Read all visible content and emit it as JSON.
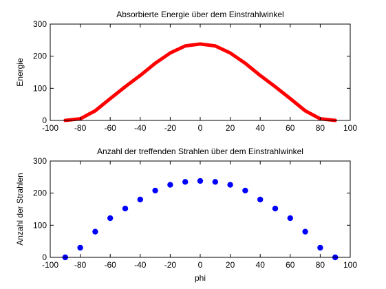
{
  "chart_data": [
    {
      "type": "line",
      "title": "Absorbierte Energie über dem Einstrahlwinkel",
      "xlabel": "",
      "ylabel": "Energie",
      "xlim": [
        -100,
        100
      ],
      "ylim": [
        0,
        300
      ],
      "xticks": [
        "-100",
        "-80",
        "-60",
        "-40",
        "-20",
        "0",
        "20",
        "40",
        "60",
        "80",
        "100"
      ],
      "yticks": [
        "0",
        "100",
        "200",
        "300"
      ],
      "grid": false,
      "color": "#ff0000",
      "x": [
        -90,
        -80,
        -70,
        -60,
        -50,
        -40,
        -30,
        -20,
        -10,
        0,
        10,
        20,
        30,
        40,
        50,
        60,
        70,
        80,
        90
      ],
      "y": [
        0,
        5,
        30,
        68,
        105,
        140,
        178,
        210,
        232,
        238,
        232,
        210,
        178,
        140,
        105,
        68,
        30,
        5,
        0
      ]
    },
    {
      "type": "scatter",
      "title": "Anzahl der treffenden Strahlen über dem Einstrahlwinkel",
      "xlabel": "phi",
      "ylabel": "Anzahl der Strahlen",
      "xlim": [
        -100,
        100
      ],
      "ylim": [
        0,
        300
      ],
      "xticks": [
        "-100",
        "-80",
        "-60",
        "-40",
        "-20",
        "0",
        "20",
        "40",
        "60",
        "80",
        "100"
      ],
      "yticks": [
        "0",
        "100",
        "200",
        "300"
      ],
      "grid": false,
      "color": "#0000ff",
      "x": [
        -90,
        -80,
        -70,
        -60,
        -50,
        -40,
        -30,
        -20,
        -10,
        0,
        10,
        20,
        30,
        40,
        50,
        60,
        70,
        80,
        90
      ],
      "y": [
        0,
        30,
        80,
        122,
        152,
        180,
        208,
        226,
        235,
        238,
        235,
        226,
        208,
        180,
        152,
        122,
        80,
        30,
        0
      ]
    }
  ]
}
